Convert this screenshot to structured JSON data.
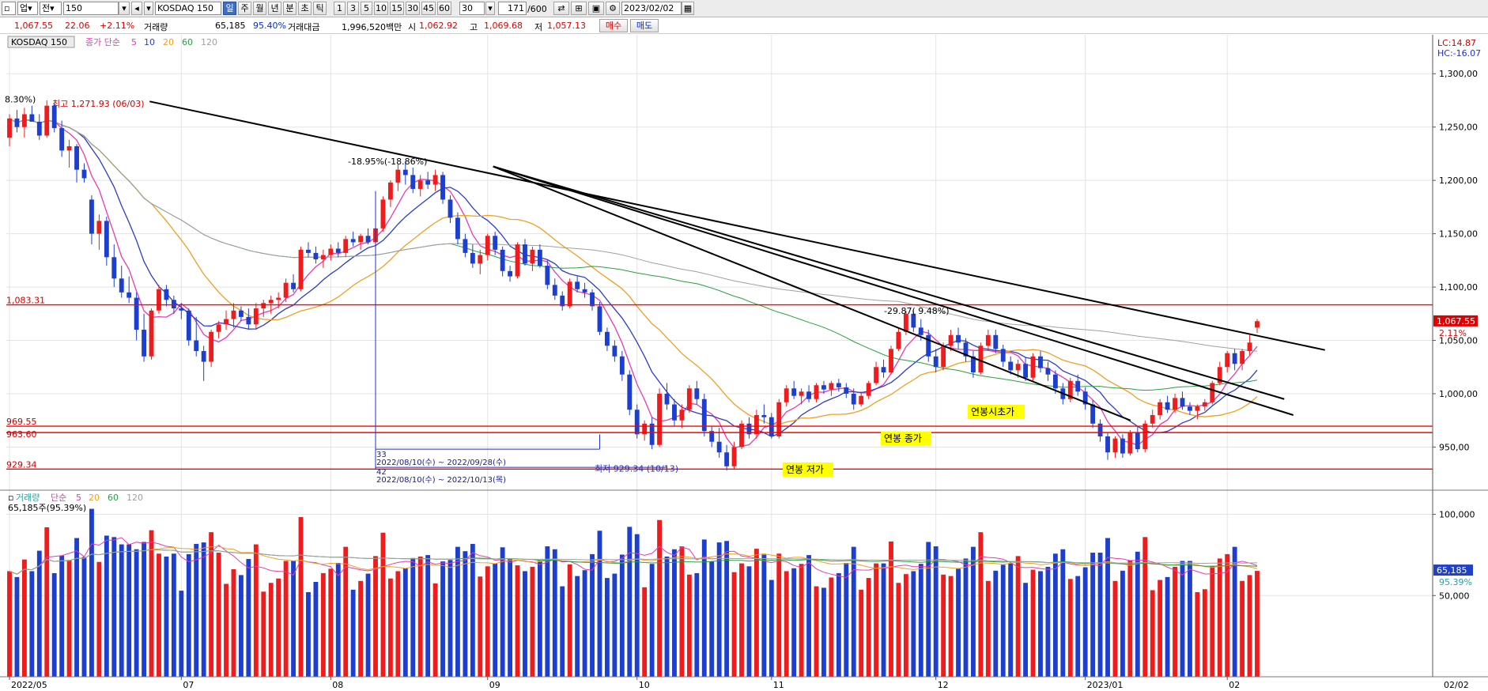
{
  "toolbar": {
    "market": "업",
    "period_mode": "전",
    "code": "150",
    "name": "KOSDAQ 150",
    "periods": [
      "일",
      "주",
      "월",
      "년",
      "분",
      "초",
      "틱"
    ],
    "intervals": [
      "1",
      "3",
      "5",
      "10",
      "15",
      "30",
      "45",
      "60"
    ],
    "interval_select": "30",
    "count": "171",
    "total": "/600",
    "date": "2023/02/02"
  },
  "info": {
    "price": "1,067.55",
    "change": "22.06",
    "change_pct": "+2.11%",
    "volume_label": "거래량",
    "volume": "65,185",
    "volume_pct": "95.40%",
    "amount_label": "거래대금",
    "amount": "1,996,520백만",
    "open_label": "시",
    "open": "1,062.92",
    "high_label": "고",
    "high": "1,069.68",
    "low_label": "저",
    "low": "1,057.13",
    "buy_label": "매수",
    "sell_label": "매도"
  },
  "colors": {
    "up": "#ee1c1c",
    "down": "#1c3fd0",
    "ma5": "#e83ab4",
    "ma10": "#2c3cc8",
    "ma20": "#f0a020",
    "ma60": "#2aa040",
    "ma120": "#a0a0a0"
  },
  "chart_data": {
    "type": "candlestick",
    "price_panel": {
      "legend_title": "KOSDAQ 150",
      "legend_ma_label": "종가 단순",
      "ma_periods": [
        "5",
        "10",
        "20",
        "60",
        "120"
      ],
      "y_ticks": [
        "1,300,00",
        "1,250,00",
        "1,200,00",
        "1,150,00",
        "1,100,00",
        "1,050,00",
        "1,000,00",
        "950,00"
      ],
      "ylim": [
        917,
        1335
      ],
      "lc_label": "LC:14.87",
      "hc_label": "HC:-16.07",
      "current_price_tag": "1,067.55",
      "current_pct_tag": "2.11%",
      "high_note": "최고 1,271.93 (06/03)",
      "low_note": "최저 929.34 (10/13)",
      "pct_note_left": "8.30%)",
      "pct_note_aug": "-18.95%(-18.86%)",
      "pct_note_nov": "-29.87( 9.48%)",
      "hlines": [
        {
          "value": 1083.31,
          "label": "1,083.31"
        },
        {
          "value": 969.55,
          "label": "969.55"
        },
        {
          "value": 963.6,
          "label": "963.60"
        },
        {
          "value": 929.34,
          "label": "929.34"
        }
      ],
      "annotations": [
        "연봉 종가",
        "연봉시초가",
        "연봉 저가"
      ],
      "range_box_top": "33",
      "range_box_text1": "2022/08/10(수) ~ 2022/09/28(수)",
      "range_box_bottom": "42",
      "range_box_text2": "2022/08/10(수) ~ 2022/10/13(목)",
      "trendlines": [
        {
          "from": [
            "2022/06/02",
            1274
          ],
          "to": [
            "2023/02/17",
            1041
          ]
        },
        {
          "from": [
            "2022/08/17",
            1213
          ],
          "to": [
            "2023/01/05",
            975
          ]
        },
        {
          "from": [
            "2022/08/17",
            1213
          ],
          "to": [
            "2023/02/10",
            980
          ]
        },
        {
          "from": [
            "2022/08/17",
            1213
          ],
          "to": [
            "2023/02/08",
            995
          ]
        }
      ],
      "candles": [
        [
          1240,
          1262,
          1232,
          1258
        ],
        [
          1258,
          1266,
          1245,
          1250
        ],
        [
          1250,
          1268,
          1240,
          1262
        ],
        [
          1262,
          1270,
          1255,
          1255
        ],
        [
          1255,
          1262,
          1238,
          1242
        ],
        [
          1242,
          1275,
          1240,
          1270
        ],
        [
          1270,
          1272,
          1245,
          1249
        ],
        [
          1249,
          1256,
          1222,
          1228
        ],
        [
          1228,
          1238,
          1212,
          1232
        ],
        [
          1232,
          1234,
          1198,
          1210
        ],
        [
          1210,
          1216,
          1198,
          1202
        ],
        [
          1182,
          1186,
          1140,
          1150
        ],
        [
          1150,
          1168,
          1135,
          1162
        ],
        [
          1162,
          1166,
          1120,
          1128
        ],
        [
          1128,
          1140,
          1100,
          1108
        ],
        [
          1108,
          1120,
          1090,
          1095
        ],
        [
          1095,
          1110,
          1085,
          1090
        ],
        [
          1090,
          1095,
          1050,
          1060
        ],
        [
          1060,
          1075,
          1030,
          1035
        ],
        [
          1035,
          1080,
          1032,
          1078
        ],
        [
          1078,
          1102,
          1075,
          1098
        ],
        [
          1098,
          1102,
          1082,
          1088
        ],
        [
          1088,
          1092,
          1075,
          1080
        ],
        [
          1080,
          1085,
          1070,
          1078
        ],
        [
          1078,
          1080,
          1045,
          1050
        ],
        [
          1050,
          1072,
          1035,
          1040
        ],
        [
          1040,
          1045,
          1012,
          1030
        ],
        [
          1030,
          1060,
          1025,
          1058
        ],
        [
          1058,
          1068,
          1052,
          1065
        ],
        [
          1065,
          1078,
          1060,
          1070
        ],
        [
          1070,
          1085,
          1062,
          1078
        ],
        [
          1078,
          1082,
          1068,
          1072
        ],
        [
          1072,
          1080,
          1060,
          1065
        ],
        [
          1065,
          1085,
          1060,
          1080
        ],
        [
          1080,
          1088,
          1072,
          1085
        ],
        [
          1085,
          1092,
          1075,
          1088
        ],
        [
          1088,
          1095,
          1080,
          1090
        ],
        [
          1090,
          1108,
          1086,
          1104
        ],
        [
          1104,
          1112,
          1095,
          1098
        ],
        [
          1098,
          1138,
          1096,
          1135
        ],
        [
          1135,
          1142,
          1128,
          1132
        ],
        [
          1132,
          1138,
          1122,
          1126
        ],
        [
          1126,
          1135,
          1118,
          1130
        ],
        [
          1130,
          1140,
          1125,
          1136
        ],
        [
          1136,
          1142,
          1128,
          1132
        ],
        [
          1132,
          1148,
          1128,
          1145
        ],
        [
          1145,
          1152,
          1138,
          1142
        ],
        [
          1142,
          1150,
          1135,
          1148
        ],
        [
          1148,
          1155,
          1140,
          1142
        ],
        [
          1142,
          1160,
          1138,
          1155
        ],
        [
          1155,
          1185,
          1152,
          1182
        ],
        [
          1182,
          1200,
          1175,
          1198
        ],
        [
          1198,
          1215,
          1190,
          1210
        ],
        [
          1210,
          1218,
          1196,
          1205
        ],
        [
          1205,
          1212,
          1188,
          1192
        ],
        [
          1192,
          1205,
          1185,
          1200
        ],
        [
          1200,
          1208,
          1192,
          1196
        ],
        [
          1196,
          1210,
          1190,
          1205
        ],
        [
          1205,
          1208,
          1178,
          1182
        ],
        [
          1182,
          1186,
          1160,
          1165
        ],
        [
          1165,
          1170,
          1140,
          1145
        ],
        [
          1145,
          1150,
          1128,
          1132
        ],
        [
          1132,
          1140,
          1118,
          1122
        ],
        [
          1122,
          1135,
          1112,
          1130
        ],
        [
          1130,
          1150,
          1125,
          1148
        ],
        [
          1148,
          1152,
          1130,
          1135
        ],
        [
          1135,
          1138,
          1110,
          1115
        ],
        [
          1115,
          1120,
          1105,
          1110
        ],
        [
          1110,
          1142,
          1108,
          1140
        ],
        [
          1140,
          1145,
          1120,
          1122
        ],
        [
          1122,
          1138,
          1115,
          1135
        ],
        [
          1135,
          1140,
          1118,
          1120
        ],
        [
          1120,
          1125,
          1098,
          1102
        ],
        [
          1102,
          1108,
          1088,
          1092
        ],
        [
          1092,
          1096,
          1078,
          1082
        ],
        [
          1082,
          1108,
          1080,
          1105
        ],
        [
          1105,
          1110,
          1095,
          1098
        ],
        [
          1098,
          1104,
          1090,
          1095
        ],
        [
          1095,
          1098,
          1078,
          1082
        ],
        [
          1082,
          1086,
          1055,
          1058
        ],
        [
          1058,
          1062,
          1040,
          1045
        ],
        [
          1045,
          1050,
          1030,
          1035
        ],
        [
          1035,
          1040,
          1012,
          1018
        ],
        [
          1018,
          1022,
          980,
          985
        ],
        [
          985,
          990,
          958,
          962
        ],
        [
          962,
          975,
          956,
          972
        ],
        [
          972,
          978,
          948,
          952
        ],
        [
          952,
          1005,
          950,
          1000
        ],
        [
          1000,
          1010,
          985,
          990
        ],
        [
          990,
          995,
          970,
          975
        ],
        [
          975,
          990,
          968,
          985
        ],
        [
          985,
          1008,
          982,
          1005
        ],
        [
          1005,
          1012,
          990,
          995
        ],
        [
          995,
          1000,
          960,
          965
        ],
        [
          965,
          970,
          950,
          955
        ],
        [
          955,
          968,
          940,
          945
        ],
        [
          945,
          952,
          928,
          932
        ],
        [
          932,
          955,
          929,
          950
        ],
        [
          950,
          975,
          948,
          972
        ],
        [
          972,
          978,
          958,
          962
        ],
        [
          962,
          985,
          958,
          980
        ],
        [
          980,
          990,
          972,
          978
        ],
        [
          978,
          982,
          958,
          960
        ],
        [
          960,
          995,
          958,
          992
        ],
        [
          992,
          1008,
          988,
          1005
        ],
        [
          1005,
          1012,
          995,
          998
        ],
        [
          998,
          1005,
          990,
          1002
        ],
        [
          1002,
          1008,
          992,
          995
        ],
        [
          995,
          1010,
          992,
          1008
        ],
        [
          1008,
          1012,
          1000,
          1004
        ],
        [
          1004,
          1012,
          998,
          1010
        ],
        [
          1010,
          1014,
          1002,
          1006
        ],
        [
          1006,
          1010,
          996,
          1000
        ],
        [
          1000,
          1005,
          985,
          990
        ],
        [
          990,
          1002,
          988,
          998
        ],
        [
          998,
          1012,
          995,
          1010
        ],
        [
          1010,
          1030,
          1008,
          1025
        ],
        [
          1025,
          1032,
          1015,
          1020
        ],
        [
          1020,
          1045,
          1018,
          1042
        ],
        [
          1042,
          1062,
          1040,
          1058
        ],
        [
          1058,
          1078,
          1055,
          1075
        ],
        [
          1075,
          1078,
          1058,
          1062
        ],
        [
          1062,
          1070,
          1050,
          1055
        ],
        [
          1055,
          1060,
          1030,
          1035
        ],
        [
          1035,
          1042,
          1020,
          1025
        ],
        [
          1025,
          1048,
          1022,
          1045
        ],
        [
          1045,
          1060,
          1040,
          1055
        ],
        [
          1055,
          1062,
          1042,
          1048
        ],
        [
          1048,
          1052,
          1030,
          1035
        ],
        [
          1035,
          1040,
          1015,
          1020
        ],
        [
          1020,
          1048,
          1018,
          1045
        ],
        [
          1045,
          1060,
          1040,
          1055
        ],
        [
          1055,
          1060,
          1038,
          1042
        ],
        [
          1042,
          1046,
          1025,
          1030
        ],
        [
          1030,
          1035,
          1018,
          1022
        ],
        [
          1022,
          1032,
          1015,
          1028
        ],
        [
          1028,
          1034,
          1012,
          1015
        ],
        [
          1015,
          1038,
          1012,
          1035
        ],
        [
          1035,
          1040,
          1020,
          1024
        ],
        [
          1024,
          1030,
          1012,
          1018
        ],
        [
          1018,
          1022,
          1000,
          1005
        ],
        [
          1005,
          1010,
          990,
          995
        ],
        [
          995,
          1015,
          992,
          1012
        ],
        [
          1012,
          1018,
          998,
          1002
        ],
        [
          1002,
          1006,
          985,
          990
        ],
        [
          990,
          994,
          968,
          972
        ],
        [
          972,
          976,
          955,
          960
        ],
        [
          960,
          964,
          938,
          945
        ],
        [
          945,
          960,
          940,
          958
        ],
        [
          958,
          962,
          940,
          944
        ],
        [
          944,
          966,
          942,
          964
        ],
        [
          964,
          970,
          945,
          948
        ],
        [
          948,
          975,
          945,
          972
        ],
        [
          972,
          985,
          968,
          980
        ],
        [
          980,
          995,
          976,
          992
        ],
        [
          992,
          998,
          982,
          985
        ],
        [
          985,
          1000,
          982,
          996
        ],
        [
          996,
          1002,
          985,
          988
        ],
        [
          988,
          992,
          980,
          984
        ],
        [
          984,
          990,
          976,
          988
        ],
        [
          988,
          995,
          984,
          992
        ],
        [
          992,
          1012,
          990,
          1010
        ],
        [
          1010,
          1030,
          1008,
          1025
        ],
        [
          1025,
          1040,
          1020,
          1038
        ],
        [
          1038,
          1042,
          1022,
          1028
        ],
        [
          1028,
          1042,
          1022,
          1040
        ],
        [
          1040,
          1055,
          1036,
          1048
        ],
        [
          1062,
          1070,
          1057,
          1068
        ]
      ]
    },
    "volume_panel": {
      "legend_title": "거래량",
      "legend_ma_label": "단순",
      "ma_periods": [
        "5",
        "20",
        "60",
        "120"
      ],
      "subtitle": "65,185주(95.39%)",
      "y_ticks": [
        "100,000",
        "50,000"
      ],
      "ylim": [
        0,
        110000
      ],
      "current_tag": "65,185",
      "current_pct_tag": "95.39%"
    },
    "x_ticks": [
      {
        "label": "2022/05",
        "index": 0
      },
      {
        "label": "07",
        "index": 23
      },
      {
        "label": "08",
        "index": 43
      },
      {
        "label": "09",
        "index": 64
      },
      {
        "label": "10",
        "index": 84
      },
      {
        "label": "11",
        "index": 102
      },
      {
        "label": "12",
        "index": 124
      },
      {
        "label": "2023/01",
        "index": 144
      },
      {
        "label": "02",
        "index": 163
      }
    ],
    "x_right_label": "02/02"
  }
}
